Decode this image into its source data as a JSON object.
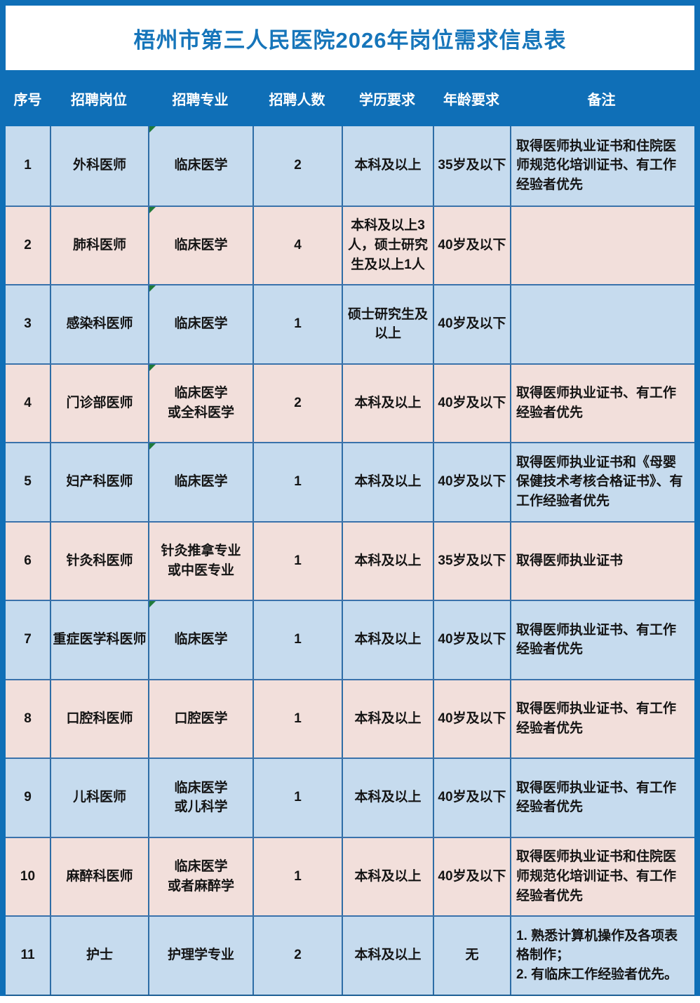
{
  "title": "梧州市第三人民医院2026年岗位需求信息表",
  "colors": {
    "frame_blue": "#0f6fb7",
    "header_bg": "#0f6fb7",
    "title_text": "#1675ba",
    "row_light_blue": "#c6dbee",
    "row_light_pink": "#f2dfdb",
    "grid_border": "#2e6da6",
    "marker_green": "#1f7a3a",
    "cell_text": "#141414",
    "header_text": "#ffffff"
  },
  "table": {
    "columns": {
      "no": "序号",
      "post": "招聘岗位",
      "major": "招聘专业",
      "count": "招聘人数",
      "education": "学历要求",
      "age": "年龄要求",
      "notes": "备注"
    },
    "rows": [
      {
        "no": "1",
        "post": "外科医师",
        "major": "临床医学",
        "count": "2",
        "education": "本科及以上",
        "age": "35岁及以下",
        "note": "取得医师执业证书和住院医师规范化培训证书、有工作经验者优先",
        "marker": true
      },
      {
        "no": "2",
        "post": "肺科医师",
        "major": "临床医学",
        "count": "4",
        "education": "本科及以上3人，硕士研究生及以上1人",
        "age": "40岁及以下",
        "note": "",
        "marker": true
      },
      {
        "no": "3",
        "post": "感染科医师",
        "major": "临床医学",
        "count": "1",
        "education": "硕士研究生及以上",
        "age": "40岁及以下",
        "note": "",
        "marker": true
      },
      {
        "no": "4",
        "post": "门诊部医师",
        "major": "临床医学\n或全科医学",
        "count": "2",
        "education": "本科及以上",
        "age": "40岁及以下",
        "note": "取得医师执业证书、有工作经验者优先",
        "marker": true
      },
      {
        "no": "5",
        "post": "妇产科医师",
        "major": "临床医学",
        "count": "1",
        "education": "本科及以上",
        "age": "40岁及以下",
        "note": "取得医师执业证书和《母婴保健技术考核合格证书》、有工作经验者优先",
        "marker": true
      },
      {
        "no": "6",
        "post": "针灸科医师",
        "major": "针灸推拿专业\n或中医专业",
        "count": "1",
        "education": "本科及以上",
        "age": "35岁及以下",
        "note": "取得医师执业证书",
        "marker": false
      },
      {
        "no": "7",
        "post": "重症医学科医师",
        "major": "临床医学",
        "count": "1",
        "education": "本科及以上",
        "age": "40岁及以下",
        "note": "取得医师执业证书、有工作经验者优先",
        "marker": true
      },
      {
        "no": "8",
        "post": "口腔科医师",
        "major": "口腔医学",
        "count": "1",
        "education": "本科及以上",
        "age": "40岁及以下",
        "note": "取得医师执业证书、有工作经验者优先",
        "marker": false
      },
      {
        "no": "9",
        "post": "儿科医师",
        "major": "临床医学\n或儿科学",
        "count": "1",
        "education": "本科及以上",
        "age": "40岁及以下",
        "note": "取得医师执业证书、有工作经验者优先",
        "marker": false
      },
      {
        "no": "10",
        "post": "麻醉科医师",
        "major": "临床医学\n或者麻醉学",
        "count": "1",
        "education": "本科及以上",
        "age": "40岁及以下",
        "note": "取得医师执业证书和住院医师规范化培训证书、有工作经验者优先",
        "marker": false
      },
      {
        "no": "11",
        "post": "护士",
        "major": "护理学专业",
        "count": "2",
        "education": "本科及以上",
        "age": "无",
        "note": "1. 熟悉计算机操作及各项表格制作；\n2. 有临床工作经验者优先。",
        "marker": false
      }
    ]
  }
}
